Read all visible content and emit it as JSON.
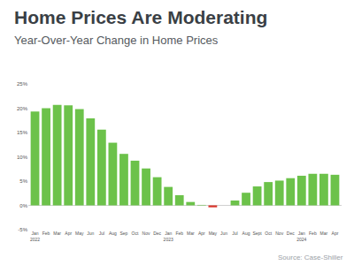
{
  "chart_data": {
    "type": "bar",
    "title": "Home Prices Are Moderating",
    "subtitle": "Year-Over-Year Change in Home Prices",
    "annotations": [
      "Source: Case-Shiller"
    ],
    "categories": [
      "Jan 2022",
      "Feb",
      "Mar",
      "Apr",
      "May",
      "Jun",
      "Jul",
      "Aug",
      "Sep",
      "Oct",
      "Nov",
      "Dec",
      "Jan 2023",
      "Feb",
      "Mar",
      "Apr",
      "May",
      "Jun",
      "Jul",
      "Aug",
      "Sept",
      "Oct",
      "Nov",
      "Dec",
      "Jan 2024",
      "Feb",
      "Mar",
      "Apr"
    ],
    "values": [
      19.3,
      20.0,
      20.7,
      20.6,
      19.8,
      17.9,
      15.6,
      12.9,
      10.6,
      9.2,
      7.6,
      5.8,
      3.8,
      2.1,
      0.7,
      0.1,
      -0.4,
      0.0,
      1.0,
      2.6,
      3.9,
      4.8,
      5.1,
      5.6,
      6.1,
      6.5,
      6.5,
      6.3
    ],
    "colors": [
      "#6cc24a",
      "#6cc24a",
      "#6cc24a",
      "#6cc24a",
      "#6cc24a",
      "#6cc24a",
      "#6cc24a",
      "#6cc24a",
      "#6cc24a",
      "#6cc24a",
      "#6cc24a",
      "#6cc24a",
      "#6cc24a",
      "#6cc24a",
      "#6cc24a",
      "#6cc24a",
      "#d9342b",
      "#6cc24a",
      "#6cc24a",
      "#6cc24a",
      "#6cc24a",
      "#6cc24a",
      "#6cc24a",
      "#6cc24a",
      "#6cc24a",
      "#6cc24a",
      "#6cc24a",
      "#6cc24a"
    ],
    "ylim": [
      -5,
      25
    ],
    "yticks": [
      {
        "value": -5,
        "label": "-5%"
      },
      {
        "value": 0,
        "label": "0%"
      },
      {
        "value": 5,
        "label": "5%"
      },
      {
        "value": 10,
        "label": "10%"
      },
      {
        "value": 15,
        "label": "15%"
      },
      {
        "value": 20,
        "label": "20%"
      },
      {
        "value": 25,
        "label": "25%"
      }
    ],
    "grid": false
  }
}
